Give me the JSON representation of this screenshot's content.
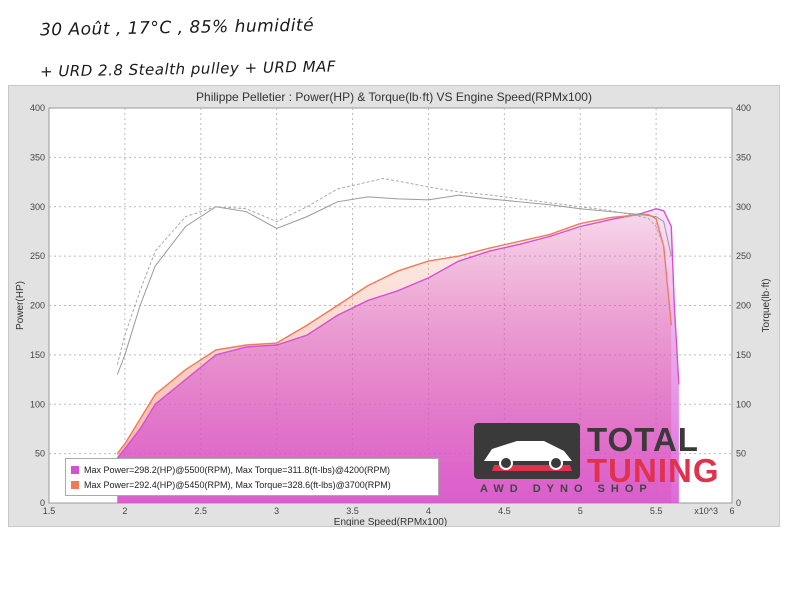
{
  "notes": {
    "line1": "30 Août , 17°C , 85% humidité",
    "line2": "+ URD 2.8 Stealth pulley + URD MAF"
  },
  "colors": {
    "run1": "#d64fd6",
    "run2": "#f07a5a",
    "grid": "#bbbbbb",
    "plot_bg": "#ffffff"
  },
  "logo": {
    "line1": "TOTAL",
    "line2": "TUNING",
    "sub": "AWD DYNO SHOP",
    "icon": "car-icon"
  },
  "chart_data": {
    "type": "line",
    "title": "Philippe Pelletier : Power(HP) & Torque(lb·ft) VS Engine Speed(RPMx100)",
    "xlabel": "Engine Speed(RPMx100)",
    "ylabel": "Power(HP)",
    "y2label": "Torque(lb·ft)",
    "x_suffix": "x10^3",
    "xlim": [
      1.5,
      6
    ],
    "ylim": [
      0,
      400
    ],
    "x_ticks": [
      "1.5",
      "2",
      "2.5",
      "3",
      "3.5",
      "4",
      "4.5",
      "5",
      "5.5",
      "6"
    ],
    "y_ticks": [
      "0",
      "50",
      "100",
      "150",
      "200",
      "250",
      "300",
      "350",
      "400"
    ],
    "grid": true,
    "legend": [
      "Max Power=298.2(HP)@5500(RPM), Max Torque=311.8(ft-lbs)@4200(RPM)",
      "Max Power=292.4(HP)@5450(RPM), Max Torque=328.6(ft-lbs)@3700(RPM)"
    ],
    "legend_position": "bottom-left",
    "series": [
      {
        "kind": "power",
        "color": "#d64fd6",
        "x": [
          1.95,
          2.0,
          2.1,
          2.2,
          2.4,
          2.6,
          2.8,
          3.0,
          3.2,
          3.4,
          3.6,
          3.8,
          4.0,
          4.2,
          4.4,
          4.6,
          4.8,
          5.0,
          5.2,
          5.4,
          5.5,
          5.55,
          5.6,
          5.62,
          5.65
        ],
        "y": [
          45,
          55,
          75,
          100,
          125,
          150,
          158,
          160,
          170,
          190,
          205,
          215,
          228,
          245,
          255,
          262,
          270,
          280,
          287,
          293,
          298,
          296,
          280,
          200,
          120
        ]
      },
      {
        "kind": "power",
        "color": "#f07a5a",
        "x": [
          1.95,
          2.0,
          2.1,
          2.2,
          2.4,
          2.6,
          2.8,
          3.0,
          3.2,
          3.4,
          3.6,
          3.8,
          4.0,
          4.2,
          4.4,
          4.6,
          4.8,
          5.0,
          5.2,
          5.4,
          5.45,
          5.5,
          5.55,
          5.6
        ],
        "y": [
          50,
          60,
          85,
          110,
          135,
          155,
          160,
          162,
          180,
          200,
          220,
          235,
          245,
          250,
          258,
          265,
          272,
          283,
          289,
          292,
          292,
          288,
          260,
          180
        ]
      },
      {
        "kind": "torque",
        "color": "#999999",
        "x": [
          1.95,
          2.0,
          2.1,
          2.2,
          2.4,
          2.6,
          2.8,
          3.0,
          3.2,
          3.4,
          3.6,
          3.8,
          4.0,
          4.2,
          4.4,
          4.6,
          4.8,
          5.0,
          5.2,
          5.4,
          5.5,
          5.55,
          5.6
        ],
        "y": [
          130,
          150,
          200,
          240,
          280,
          300,
          295,
          278,
          290,
          305,
          310,
          308,
          307,
          311.8,
          308,
          305,
          302,
          298,
          295,
          292,
          290,
          285,
          250
        ]
      },
      {
        "kind": "torque",
        "color": "#aaaaaa",
        "x": [
          1.95,
          2.0,
          2.1,
          2.2,
          2.4,
          2.6,
          2.8,
          3.0,
          3.2,
          3.4,
          3.6,
          3.7,
          3.8,
          4.0,
          4.2,
          4.4,
          4.6,
          4.8,
          5.0,
          5.2,
          5.4,
          5.45,
          5.5,
          5.55
        ],
        "y": [
          140,
          170,
          215,
          255,
          290,
          300,
          298,
          285,
          300,
          318,
          325,
          328.6,
          326,
          320,
          315,
          312,
          308,
          304,
          300,
          296,
          290,
          288,
          280,
          260
        ]
      }
    ]
  }
}
